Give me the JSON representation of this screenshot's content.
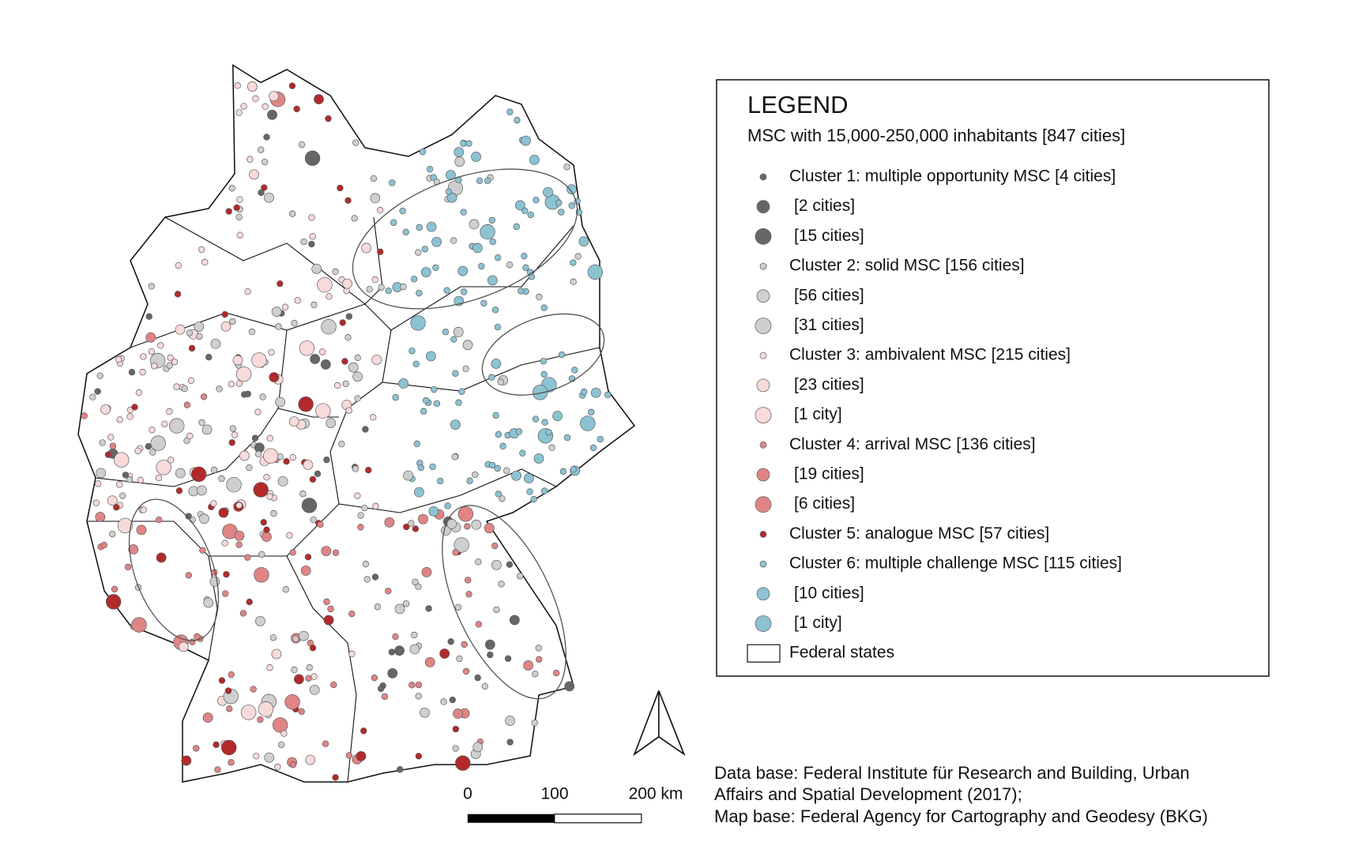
{
  "legend": {
    "title": "LEGEND",
    "subtitle": "MSC with 15,000-250,000 inhabitants [847 cities]",
    "items": [
      {
        "label": "Cluster 1: multiple opportunity MSC  [4 cities]",
        "color": "#666666"
      },
      {
        "label": "[2 cities]",
        "color": "#666666"
      },
      {
        "label": "[15 cities]",
        "color": "#666666"
      },
      {
        "label": "Cluster 2: solid MSC [156 cities]",
        "color": "#cfcfcf"
      },
      {
        "label": "[56 cities]",
        "color": "#cfcfcf"
      },
      {
        "label": "[31 cities]",
        "color": "#cfcfcf"
      },
      {
        "label": "Cluster 3: ambivalent MSC [215 cities]",
        "color": "#f8dada"
      },
      {
        "label": "[23 cities]",
        "color": "#f8dada"
      },
      {
        "label": "[1 city]",
        "color": "#f8dada"
      },
      {
        "label": "Cluster 4: arrival MSC [136 cities]",
        "color": "#e08585"
      },
      {
        "label": "[19 cities]",
        "color": "#e08585"
      },
      {
        "label": "[6 cities]",
        "color": "#e08585"
      },
      {
        "label": "Cluster 5: analogue MSC  [57 cities]",
        "color": "#b22a2a"
      },
      {
        "label": "Cluster 6: multiple challenge MSC [115 cities]",
        "color": "#8cc3d3"
      },
      {
        "label": "[10 cities]",
        "color": "#8cc3d3"
      },
      {
        "label": "[1 city]",
        "color": "#8cc3d3"
      },
      {
        "label": "Federal states",
        "color": "#ffffff"
      }
    ]
  },
  "scale_bar": {
    "labels": [
      "0",
      "100",
      "200 km"
    ]
  },
  "source": [
    "Data base: Federal Institute für Research and Building, Urban",
    "Affairs and Spatial Development (2017);",
    "Map base: Federal Agency for Cartography and Geodesy (BKG)"
  ]
}
